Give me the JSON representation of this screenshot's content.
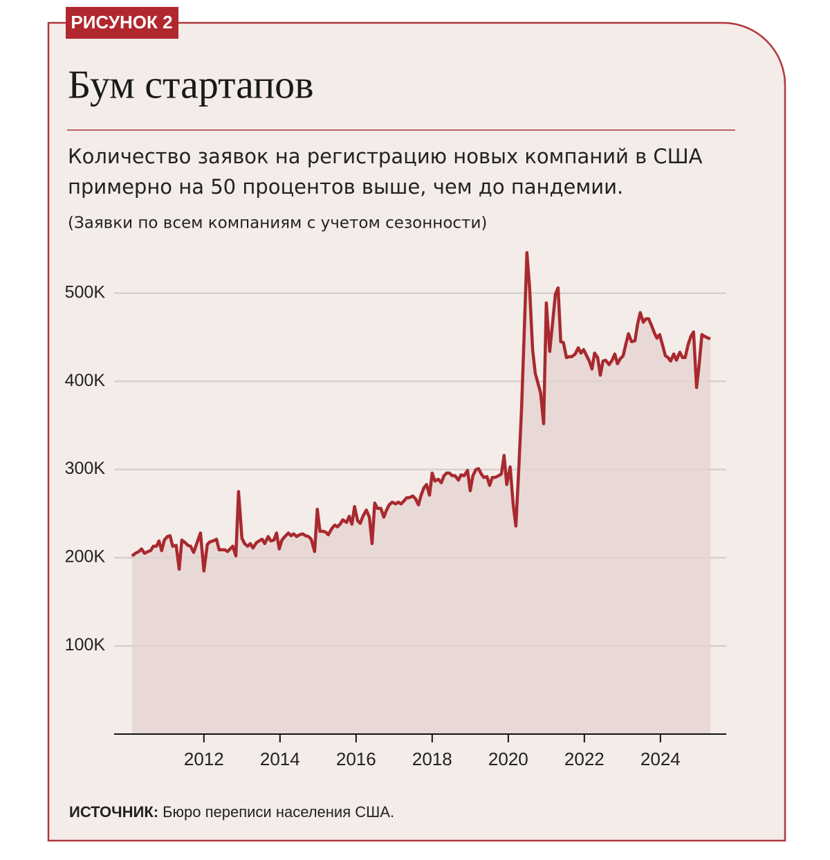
{
  "badge": "РИСУНОК 2",
  "chart_data": {
    "type": "area-line",
    "title": "Бум стартапов",
    "subtitle_lines": [
      "Количество заявок на регистрацию новых компаний в США",
      "примерно на 50 процентов выше, чем до пандемии."
    ],
    "note": "(Заявки по всем компаниям с учетом сезонности)",
    "source_label": "ИСТОЧНИК:",
    "source": "Бюро переписи населения США.",
    "color": "#a8292f",
    "fill_color": "#e8d9d6",
    "grid": true,
    "xlim": [
      2009.64,
      2025.73
    ],
    "xticks": [
      2012,
      2014,
      2016,
      2018,
      2020,
      2022,
      2024
    ],
    "ylim": [
      0,
      550000
    ],
    "yticks": [
      {
        "value": 100000,
        "label": "100K"
      },
      {
        "value": 200000,
        "label": "200K"
      },
      {
        "value": 300000,
        "label": "300K"
      },
      {
        "value": 400000,
        "label": "400K"
      },
      {
        "value": 500000,
        "label": "500K"
      }
    ],
    "x": [
      2010.11,
      2010.2,
      2010.29,
      2010.36,
      2010.44,
      2010.53,
      2010.6,
      2010.67,
      2010.75,
      2010.82,
      2010.89,
      2010.96,
      2011.04,
      2011.11,
      2011.18,
      2011.27,
      2011.35,
      2011.42,
      2011.51,
      2011.58,
      2011.65,
      2011.73,
      2011.82,
      2011.91,
      2012,
      2012.09,
      2012.16,
      2012.24,
      2012.33,
      2012.4,
      2012.47,
      2012.55,
      2012.62,
      2012.69,
      2012.76,
      2012.84,
      2012.91,
      2013,
      2013.07,
      2013.15,
      2013.22,
      2013.29,
      2013.38,
      2013.45,
      2013.53,
      2013.6,
      2013.69,
      2013.76,
      2013.84,
      2013.91,
      2013.98,
      2014.05,
      2014.13,
      2014.22,
      2014.29,
      2014.36,
      2014.44,
      2014.51,
      2014.6,
      2014.67,
      2014.75,
      2014.82,
      2014.91,
      2014.98,
      2015.05,
      2015.13,
      2015.2,
      2015.27,
      2015.36,
      2015.44,
      2015.51,
      2015.58,
      2015.65,
      2015.75,
      2015.82,
      2015.89,
      2015.96,
      2016.04,
      2016.11,
      2016.18,
      2016.27,
      2016.35,
      2016.42,
      2016.49,
      2016.56,
      2016.65,
      2016.73,
      2016.8,
      2016.87,
      2016.95,
      2017.04,
      2017.11,
      2017.18,
      2017.25,
      2017.33,
      2017.4,
      2017.49,
      2017.56,
      2017.64,
      2017.71,
      2017.78,
      2017.85,
      2017.93,
      2018,
      2018.07,
      2018.16,
      2018.24,
      2018.31,
      2018.38,
      2018.45,
      2018.53,
      2018.6,
      2018.69,
      2018.76,
      2018.84,
      2018.93,
      2019,
      2019.07,
      2019.15,
      2019.22,
      2019.29,
      2019.36,
      2019.44,
      2019.51,
      2019.58,
      2019.65,
      2019.75,
      2019.82,
      2019.89,
      2019.96,
      2020.05,
      2020.13,
      2020.2,
      2020.27,
      2020.35,
      2020.42,
      2020.49,
      2020.56,
      2020.64,
      2020.71,
      2020.78,
      2020.85,
      2020.93,
      2021,
      2021.09,
      2021.16,
      2021.24,
      2021.31,
      2021.38,
      2021.45,
      2021.53,
      2021.6,
      2021.67,
      2021.76,
      2021.84,
      2021.91,
      2021.98,
      2022.05,
      2022.13,
      2022.2,
      2022.27,
      2022.35,
      2022.42,
      2022.49,
      2022.56,
      2022.65,
      2022.73,
      2022.8,
      2022.87,
      2022.95,
      2023.02,
      2023.09,
      2023.16,
      2023.24,
      2023.33,
      2023.4,
      2023.47,
      2023.55,
      2023.62,
      2023.69,
      2023.76,
      2023.84,
      2023.91,
      2023.98,
      2024.05,
      2024.13,
      2024.2,
      2024.27,
      2024.35,
      2024.42,
      2024.51,
      2024.58,
      2024.65,
      2024.73,
      2024.8,
      2024.87,
      2024.95,
      2025.02,
      2025.09,
      2025.16,
      2025.31
    ],
    "values": [
      202000,
      205000,
      207000,
      210000,
      205000,
      207000,
      208000,
      213000,
      213000,
      219000,
      208000,
      220000,
      224000,
      225000,
      213000,
      214000,
      187000,
      220000,
      217000,
      214000,
      213000,
      206000,
      217000,
      228000,
      185000,
      215000,
      218000,
      219000,
      221000,
      209000,
      209000,
      209000,
      207000,
      210000,
      213000,
      202000,
      275000,
      222000,
      216000,
      213000,
      216000,
      211000,
      217000,
      219000,
      221000,
      216000,
      224000,
      219000,
      220000,
      228000,
      210000,
      220000,
      224000,
      228000,
      225000,
      227000,
      224000,
      226000,
      227000,
      225000,
      224000,
      221000,
      207000,
      255000,
      230000,
      230000,
      229000,
      226000,
      233000,
      237000,
      235000,
      238000,
      243000,
      240000,
      247000,
      238000,
      258000,
      242000,
      239000,
      247000,
      254000,
      246000,
      216000,
      262000,
      256000,
      256000,
      246000,
      254000,
      260000,
      263000,
      261000,
      263000,
      261000,
      264000,
      268000,
      268000,
      270000,
      267000,
      260000,
      271000,
      279000,
      283000,
      271000,
      296000,
      287000,
      289000,
      285000,
      293000,
      296000,
      296000,
      293000,
      293000,
      288000,
      294000,
      293000,
      299000,
      276000,
      293000,
      300000,
      301000,
      295000,
      291000,
      292000,
      282000,
      291000,
      291000,
      293000,
      295000,
      316000,
      283000,
      303000,
      260000,
      236000,
      295000,
      369000,
      456000,
      546000,
      507000,
      436000,
      409000,
      398000,
      387000,
      352000,
      489000,
      434000,
      464000,
      499000,
      506000,
      445000,
      444000,
      427000,
      428000,
      428000,
      431000,
      438000,
      432000,
      436000,
      430000,
      423000,
      414000,
      432000,
      427000,
      407000,
      423000,
      424000,
      419000,
      424000,
      431000,
      420000,
      426000,
      429000,
      442000,
      454000,
      445000,
      446000,
      465000,
      478000,
      467000,
      471000,
      471000,
      464000,
      455000,
      449000,
      453000,
      442000,
      429000,
      427000,
      423000,
      431000,
      424000,
      433000,
      427000,
      427000,
      442000,
      451000,
      456000,
      393000,
      420000,
      453000,
      451000,
      448000
    ]
  }
}
